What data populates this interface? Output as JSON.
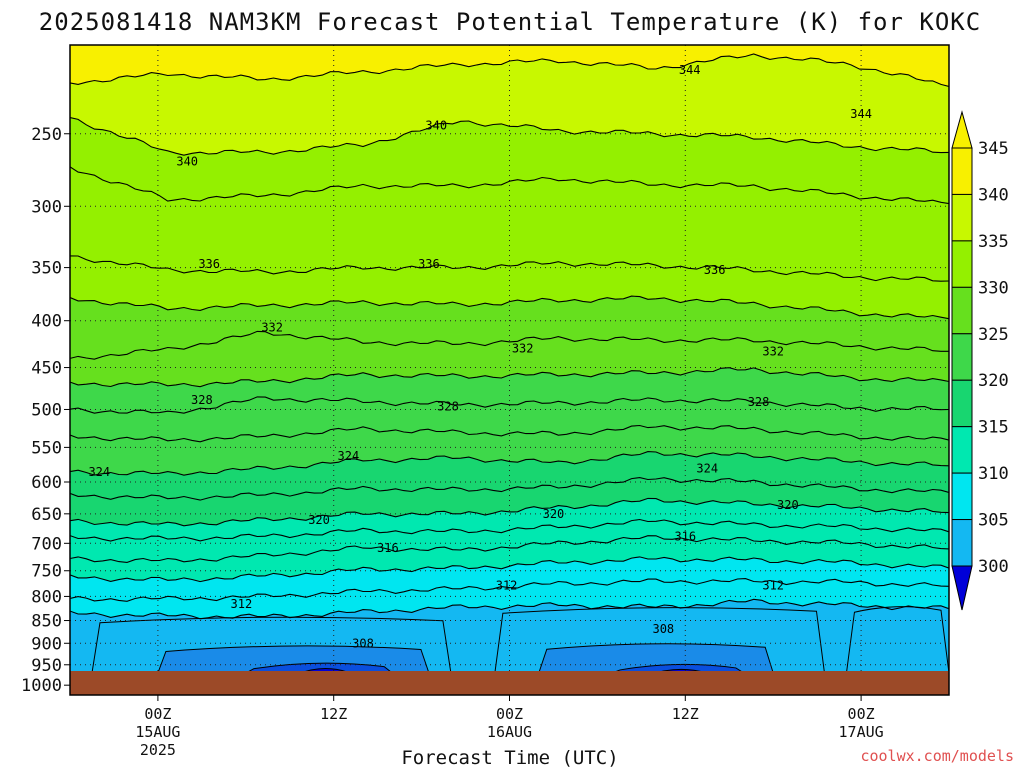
{
  "title": "2025081418 NAM3KM Forecast Potential Temperature (K) for KOKC",
  "credit": "coolwx.com/models",
  "colors": {
    "ground": "#9c4a28",
    "levels": [
      "#0000d8",
      "#0a4fde",
      "#1a8be8",
      "#14b8f2",
      "#00e6f0",
      "#00e8b0",
      "#18d670",
      "#3ed84a",
      "#66e01e",
      "#94f000",
      "#c8f800",
      "#f8f000"
    ]
  },
  "chart_data": {
    "type": "heatmap",
    "title": "2025081418 NAM3KM Forecast Potential Temperature (K) for KOKC",
    "xlabel": "Forecast Time (UTC)",
    "ylabel": "",
    "x_ticks": [
      {
        "t": 6,
        "label": [
          "00Z",
          "15AUG",
          "2025"
        ]
      },
      {
        "t": 18,
        "label": [
          "12Z"
        ]
      },
      {
        "t": 30,
        "label": [
          "00Z",
          "16AUG"
        ]
      },
      {
        "t": 42,
        "label": [
          "12Z"
        ]
      },
      {
        "t": 54,
        "label": [
          "00Z",
          "17AUG"
        ]
      }
    ],
    "xlim": [
      0,
      60
    ],
    "y_ticks": [
      250,
      300,
      350,
      400,
      450,
      500,
      550,
      600,
      650,
      700,
      750,
      800,
      850,
      900,
      950,
      1000
    ],
    "ylim": [
      1025,
      200
    ],
    "y_scale": "log",
    "grid": true,
    "colorbar": {
      "labels": [
        300,
        305,
        310,
        315,
        320,
        325,
        330,
        335,
        340,
        345
      ],
      "min": 300,
      "max": 345,
      "step": 5
    },
    "ground_pressure": 965,
    "series": [
      {
        "theta": 344,
        "p": [
          220,
          215,
          218,
          214,
          210,
          208,
          212,
          205,
          210,
          222
        ]
      },
      {
        "theta": 340,
        "p": [
          240,
          262,
          262,
          257,
          242,
          248,
          250,
          252,
          258,
          262
        ]
      },
      {
        "theta": 338,
        "p": [
          272,
          295,
          292,
          285,
          285,
          280,
          284,
          285,
          292,
          298
        ]
      },
      {
        "theta": 336,
        "p": [
          340,
          352,
          354,
          350,
          350,
          346,
          348,
          352,
          358,
          362
        ]
      },
      {
        "theta": 334,
        "p": [
          378,
          388,
          385,
          382,
          384,
          380,
          378,
          383,
          392,
          398
        ]
      },
      {
        "theta": 332,
        "p": [
          440,
          430,
          412,
          422,
          424,
          418,
          420,
          420,
          426,
          432
        ]
      },
      {
        "theta": 330,
        "p": [
          468,
          470,
          466,
          458,
          460,
          458,
          456,
          452,
          462,
          466
        ]
      },
      {
        "theta": 328,
        "p": [
          500,
          505,
          486,
          490,
          494,
          492,
          488,
          490,
          498,
          500
        ]
      },
      {
        "theta": 326,
        "p": [
          535,
          540,
          535,
          525,
          530,
          532,
          522,
          525,
          535,
          540
        ]
      },
      {
        "theta": 324,
        "p": [
          585,
          588,
          580,
          568,
          565,
          572,
          558,
          562,
          570,
          576
        ]
      },
      {
        "theta": 322,
        "p": [
          620,
          625,
          620,
          610,
          612,
          608,
          595,
          600,
          610,
          616
        ]
      },
      {
        "theta": 320,
        "p": [
          662,
          668,
          660,
          650,
          650,
          640,
          628,
          634,
          640,
          648
        ]
      },
      {
        "theta": 318,
        "p": [
          690,
          692,
          688,
          678,
          680,
          672,
          662,
          668,
          672,
          680
        ]
      },
      {
        "theta": 316,
        "p": [
          728,
          732,
          722,
          708,
          712,
          700,
          690,
          695,
          700,
          710
        ]
      },
      {
        "theta": 314,
        "p": [
          762,
          768,
          760,
          748,
          745,
          735,
          728,
          730,
          735,
          745
        ]
      },
      {
        "theta": 312,
        "p": [
          805,
          805,
          800,
          790,
          785,
          775,
          770,
          770,
          772,
          780
        ]
      },
      {
        "theta": 310,
        "p": [
          835,
          840,
          842,
          832,
          822,
          818,
          822,
          810,
          818,
          825
        ]
      }
    ],
    "contour_labels": [
      {
        "value": "344",
        "t": 42.3,
        "p": 213
      },
      {
        "value": "344",
        "t": 54.0,
        "p": 238
      },
      {
        "value": "340",
        "t": 25.0,
        "p": 245
      },
      {
        "value": "340",
        "t": 8.0,
        "p": 268
      },
      {
        "value": "336",
        "t": 9.5,
        "p": 347
      },
      {
        "value": "336",
        "t": 24.5,
        "p": 347
      },
      {
        "value": "336",
        "t": 44.0,
        "p": 352
      },
      {
        "value": "332",
        "t": 13.8,
        "p": 407
      },
      {
        "value": "332",
        "t": 30.9,
        "p": 429
      },
      {
        "value": "332",
        "t": 48.0,
        "p": 432
      },
      {
        "value": "328",
        "t": 9.0,
        "p": 488
      },
      {
        "value": "328",
        "t": 25.8,
        "p": 496
      },
      {
        "value": "328",
        "t": 47.0,
        "p": 491
      },
      {
        "value": "324",
        "t": 2.0,
        "p": 585
      },
      {
        "value": "324",
        "t": 19.0,
        "p": 562
      },
      {
        "value": "324",
        "t": 43.5,
        "p": 580
      },
      {
        "value": "320",
        "t": 17.0,
        "p": 660
      },
      {
        "value": "320",
        "t": 33.0,
        "p": 650
      },
      {
        "value": "320",
        "t": 49.0,
        "p": 636
      },
      {
        "value": "316",
        "t": 21.7,
        "p": 708
      },
      {
        "value": "316",
        "t": 42.0,
        "p": 688
      },
      {
        "value": "312",
        "t": 11.7,
        "p": 815
      },
      {
        "value": "312",
        "t": 29.8,
        "p": 778
      },
      {
        "value": "312",
        "t": 48.0,
        "p": 778
      },
      {
        "value": "308",
        "t": 20.0,
        "p": 900
      },
      {
        "value": "308",
        "t": 40.5,
        "p": 868
      }
    ]
  }
}
